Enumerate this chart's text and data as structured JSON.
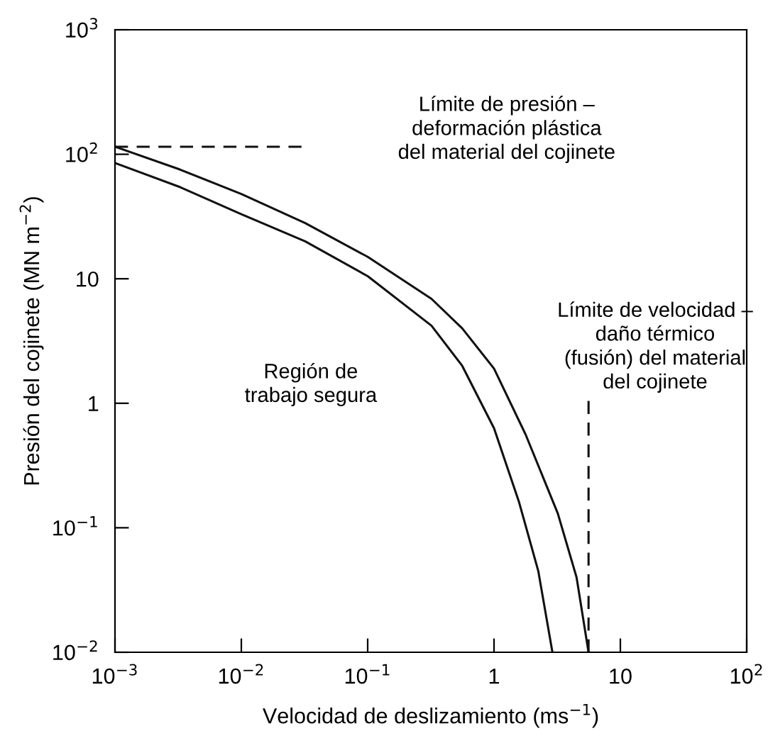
{
  "chart_data": {
    "type": "line",
    "xlabel": "Velocidad de deslizamiento (ms$^{−1}$)",
    "ylabel": "Presión del cojinete (MN m$^{−2}$)",
    "log": "xy",
    "xlim": [
      0.001,
      100
    ],
    "ylim": [
      0.01,
      1000
    ],
    "xticks": [
      {
        "value": 0.001,
        "label": "10$^{−3}$"
      },
      {
        "value": 0.01,
        "label": "10$^{−2}$"
      },
      {
        "value": 0.1,
        "label": "10$^{−1}$"
      },
      1,
      10,
      {
        "value": 100,
        "label": "10$^{2}$"
      }
    ],
    "yticks": [
      {
        "value": 0.01,
        "label": "10$^{−2}$"
      },
      {
        "value": 0.1,
        "label": "10$^{−1}$"
      },
      1,
      10,
      {
        "value": 100,
        "label": "10$^{2}$"
      },
      {
        "value": 1000,
        "label": "10$^{3}$"
      }
    ],
    "grid": false,
    "marker": "none",
    "series": [
      {
        "color": "#111111",
        "line_style": "solid",
        "x": [
          0.001,
          0.0032,
          0.01,
          0.032,
          0.1,
          0.32,
          0.56,
          1,
          1.78,
          3.2,
          4.5,
          5.6
        ],
        "values": [
          115,
          76,
          48,
          28,
          15,
          6.9,
          4,
          1.9,
          0.56,
          0.13,
          0.04,
          0.01
        ]
      },
      {
        "color": "#111111",
        "line_style": "solid",
        "x": [
          0.001,
          0.0032,
          0.01,
          0.032,
          0.1,
          0.32,
          0.56,
          1,
          1.58,
          2.24,
          2.9
        ],
        "values": [
          85,
          55,
          33,
          20,
          10.5,
          4.2,
          2,
          0.63,
          0.16,
          0.045,
          0.01
        ]
      },
      {
        "color": "#111111",
        "line_style": "dashed",
        "x": [
          0.001,
          0.03
        ],
        "values": [
          115,
          115
        ]
      },
      {
        "color": "#111111",
        "line_style": "dashed",
        "x": [
          5.6,
          5.6
        ],
        "values": [
          0.01,
          1.05
        ]
      }
    ],
    "annotations": [
      "Límite de presión –\ndeformación plástica\ndel material del cojinete",
      "Límite de velocidad –\ndaño térmico\n(fusión) del material\ndel cojinete",
      "Región de\ntrabajo segura"
    ]
  }
}
